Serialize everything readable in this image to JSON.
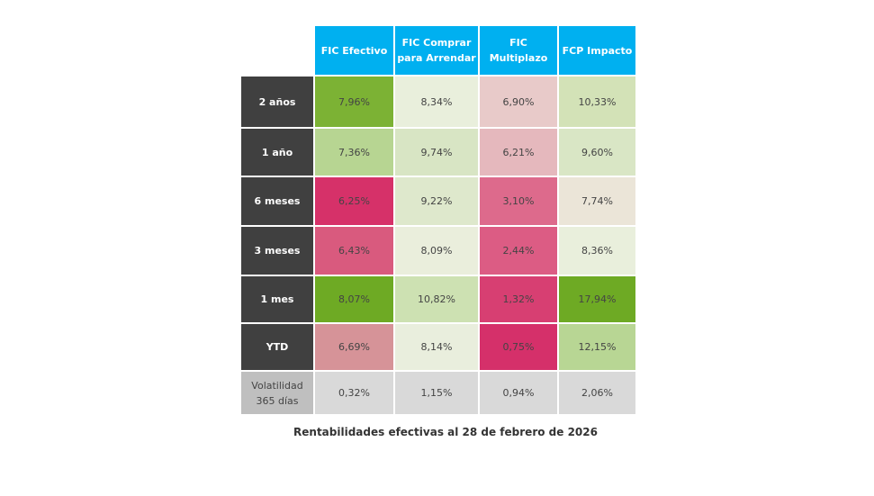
{
  "chart_data": {
    "type": "heatmap",
    "title": "Rentabilidades efectivas al 28 de febrero de 2026",
    "columns": [
      "FIC Efectivo",
      "FIC Comprar para Arrendar",
      "FIC Multiplazo",
      "FCP Impacto"
    ],
    "rows": [
      {
        "label": "2 años",
        "values": [
          "7,96%",
          "8,34%",
          "6,90%",
          "10,33%"
        ],
        "colors": [
          "#7cb234",
          "#e9efdc",
          "#e8cac9",
          "#d3e2b7"
        ]
      },
      {
        "label": "1 año",
        "values": [
          "7,36%",
          "9,74%",
          "6,21%",
          "9,60%"
        ],
        "colors": [
          "#b7d592",
          "#d8e5c4",
          "#e5b8bd",
          "#d9e6c5"
        ]
      },
      {
        "label": "6 meses",
        "values": [
          "6,25%",
          "9,22%",
          "3,10%",
          "7,74%"
        ],
        "colors": [
          "#d63169",
          "#dee8cc",
          "#dd6a8c",
          "#ebe5d8"
        ]
      },
      {
        "label": "3 meses",
        "values": [
          "6,43%",
          "8,09%",
          "2,44%",
          "8,36%"
        ],
        "colors": [
          "#d95a7e",
          "#eaeedc",
          "#dc5c84",
          "#e9efdc"
        ]
      },
      {
        "label": "1 mes",
        "values": [
          "8,07%",
          "10,82%",
          "1,32%",
          "17,94%"
        ],
        "colors": [
          "#6eaa24",
          "#cde1b2",
          "#d73f72",
          "#6eaa24"
        ]
      },
      {
        "label": "YTD",
        "values": [
          "6,69%",
          "8,14%",
          "0,75%",
          "12,15%"
        ],
        "colors": [
          "#d69398",
          "#e9eedd",
          "#d5306a",
          "#b8d694"
        ]
      },
      {
        "label": "Volatilidad 365 días",
        "values": [
          "0,32%",
          "1,15%",
          "0,94%",
          "2,06%"
        ],
        "colors": [
          "#d9d9d9",
          "#d9d9d9",
          "#d9d9d9",
          "#d9d9d9"
        ]
      }
    ]
  }
}
